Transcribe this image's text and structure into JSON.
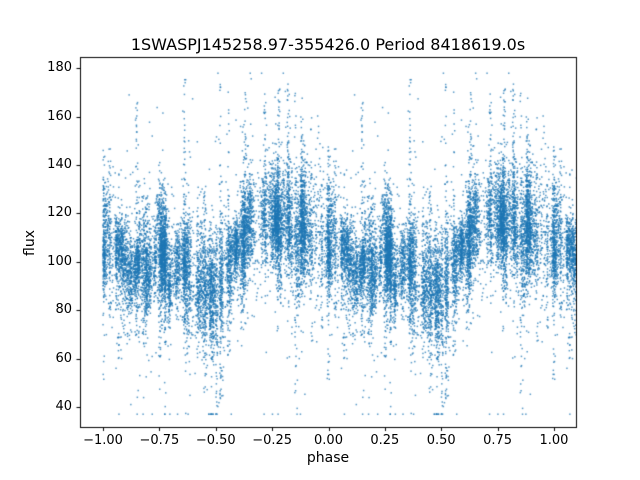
{
  "chart_data": {
    "type": "scatter",
    "title": "1SWASPJ145258.97-355426.0 Period 8418619.0s",
    "xlabel": "phase",
    "ylabel": "flux",
    "xlim": [
      -1.1,
      1.1
    ],
    "ylim": [
      31.5,
      184.5
    ],
    "x_ticks": [
      -1.0,
      -0.75,
      -0.5,
      -0.25,
      0.0,
      0.25,
      0.5,
      0.75,
      1.0
    ],
    "x_tick_labels": [
      "−1.00",
      "−0.75",
      "−0.50",
      "−0.25",
      "0.00",
      "0.25",
      "0.50",
      "0.75",
      "1.00"
    ],
    "y_ticks": [
      40,
      60,
      80,
      100,
      120,
      140,
      160,
      180
    ],
    "y_tick_labels": [
      "40",
      "60",
      "80",
      "100",
      "120",
      "140",
      "160",
      "180"
    ],
    "marker_color": "#1f77b4",
    "marker_alpha": 0.75,
    "marker_size_px": 1.5,
    "plot_bg": "#ffffff",
    "cycles_plotted": 2,
    "profile": {
      "phase": [
        0.0,
        0.05,
        0.1,
        0.15,
        0.2,
        0.25,
        0.3,
        0.35,
        0.4,
        0.45,
        0.5,
        0.55,
        0.6,
        0.65,
        0.7,
        0.75,
        0.8,
        0.85,
        0.9,
        0.95,
        1.0
      ],
      "flux": [
        110,
        105,
        98,
        95,
        97,
        103,
        100,
        99,
        92,
        90,
        88,
        96,
        106,
        112,
        114,
        118,
        116,
        113,
        112,
        111,
        110
      ]
    },
    "streaks": [
      {
        "phase": 0.0,
        "low": 45,
        "high": 152,
        "n": 110
      },
      {
        "phase": 0.03,
        "low": 75,
        "high": 148,
        "n": 70
      },
      {
        "phase": 0.07,
        "low": 60,
        "high": 140,
        "n": 60
      },
      {
        "phase": 0.15,
        "low": 70,
        "high": 166,
        "n": 90
      },
      {
        "phase": 0.36,
        "low": 68,
        "high": 176,
        "n": 100
      },
      {
        "phase": 0.45,
        "low": 37,
        "high": 130,
        "n": 90
      },
      {
        "phase": 0.52,
        "low": 40,
        "high": 176,
        "n": 120
      },
      {
        "phase": 0.555,
        "low": 60,
        "high": 174,
        "n": 80
      },
      {
        "phase": 0.63,
        "low": 70,
        "high": 176,
        "n": 100
      },
      {
        "phase": 0.72,
        "low": 80,
        "high": 170,
        "n": 80
      },
      {
        "phase": 0.78,
        "low": 85,
        "high": 172,
        "n": 80
      },
      {
        "phase": 0.82,
        "low": 60,
        "high": 175,
        "n": 110
      },
      {
        "phase": 0.855,
        "low": 45,
        "high": 172,
        "n": 100
      },
      {
        "phase": 0.88,
        "low": 90,
        "high": 160,
        "n": 60
      },
      {
        "phase": 0.97,
        "low": 70,
        "high": 132,
        "n": 60
      }
    ],
    "generation": {
      "seed": 20,
      "n_clusters": 95,
      "cluster_points_min": 30,
      "cluster_points_max": 180,
      "cluster_phase_width_min": 0.002,
      "cluster_phase_width_max": 0.01,
      "cluster_offset_sigma": 5,
      "cluster_flux_sigma_min": 5,
      "cluster_flux_sigma_max": 14,
      "background_points": 1400,
      "background_sigma": 13,
      "outlier_prob": 0.03,
      "outlier_sigma": 32,
      "flux_min": 37,
      "flux_max": 178
    }
  }
}
